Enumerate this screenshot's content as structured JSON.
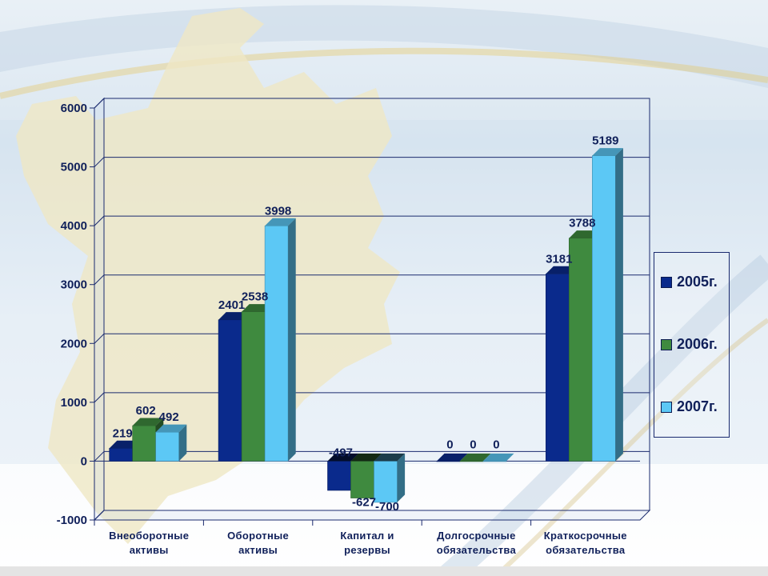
{
  "chart_data": {
    "type": "bar",
    "categories": [
      [
        "Внеоборотные",
        "активы"
      ],
      [
        "Оборотные",
        "активы"
      ],
      [
        "Капитал и",
        "резервы"
      ],
      [
        "Долгосрочные",
        "обязательства"
      ],
      [
        "Краткосрочные",
        "обязательства"
      ]
    ],
    "series": [
      {
        "name": "2005г.",
        "color": "#0a2a8c",
        "values": [
          219,
          2401,
          -497,
          0,
          3181
        ]
      },
      {
        "name": "2006г.",
        "color": "#3f8a3f",
        "values": [
          602,
          2538,
          -627,
          0,
          3788
        ]
      },
      {
        "name": "2007г.",
        "color": "#5cc8f5",
        "values": [
          492,
          3998,
          -700,
          0,
          5189
        ]
      }
    ],
    "ylim": [
      -1000,
      6000
    ],
    "yticks": [
      -1000,
      0,
      1000,
      2000,
      3000,
      4000,
      5000,
      6000
    ],
    "grid": true,
    "legend": "right",
    "style": "3d-bars"
  }
}
